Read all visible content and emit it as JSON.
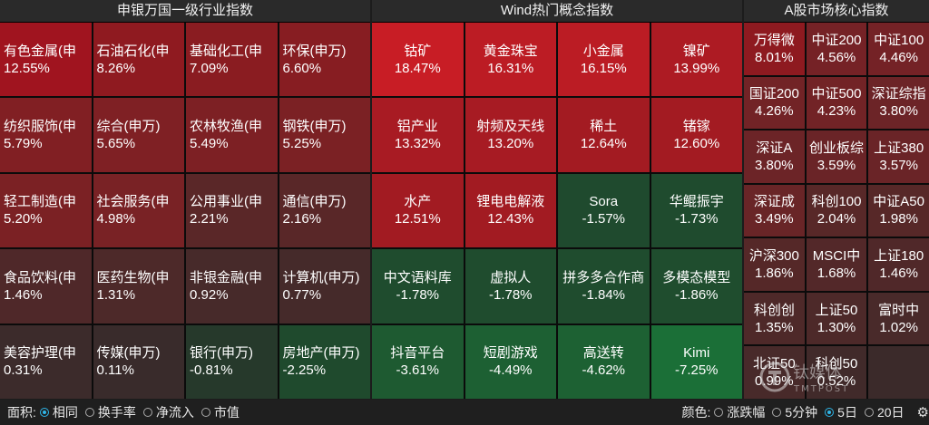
{
  "panels": [
    {
      "title": "申银万国一级行业指数",
      "tiles": [
        {
          "name": "有色金属(申",
          "pct": "12.55%",
          "color": "#a0141f"
        },
        {
          "name": "石油石化(申",
          "pct": "8.26%",
          "color": "#8f1a20"
        },
        {
          "name": "基础化工(申",
          "pct": "7.09%",
          "color": "#8a1c21"
        },
        {
          "name": "环保(申万)",
          "pct": "6.60%",
          "color": "#871d22"
        },
        {
          "name": "纺织服饰(申",
          "pct": "5.79%",
          "color": "#811f23"
        },
        {
          "name": "综合(申万)",
          "pct": "5.65%",
          "color": "#7f2024"
        },
        {
          "name": "农林牧渔(申",
          "pct": "5.49%",
          "color": "#7d2024"
        },
        {
          "name": "钢铁(申万)",
          "pct": "5.25%",
          "color": "#7b2124"
        },
        {
          "name": "轻工制造(申",
          "pct": "5.20%",
          "color": "#7b2124"
        },
        {
          "name": "社会服务(申",
          "pct": "4.98%",
          "color": "#792225"
        },
        {
          "name": "公用事业(申",
          "pct": "2.21%",
          "color": "#5a2728"
        },
        {
          "name": "通信(申万)",
          "pct": "2.16%",
          "color": "#592728"
        },
        {
          "name": "食品饮料(申",
          "pct": "1.46%",
          "color": "#4f2829"
        },
        {
          "name": "医药生物(申",
          "pct": "1.31%",
          "color": "#4d2929"
        },
        {
          "name": "非银金融(申",
          "pct": "0.92%",
          "color": "#472a2a"
        },
        {
          "name": "计算机(申万)",
          "pct": "0.77%",
          "color": "#452a2a"
        },
        {
          "name": "美容护理(申",
          "pct": "0.31%",
          "color": "#3c2b2b"
        },
        {
          "name": "传媒(申万)",
          "pct": "0.11%",
          "color": "#392b2b"
        },
        {
          "name": "银行(申万)",
          "pct": "-0.81%",
          "color": "#26392b"
        },
        {
          "name": "房地产(申万)",
          "pct": "-2.25%",
          "color": "#1f4a2d"
        }
      ]
    },
    {
      "title": "Wind热门概念指数",
      "tiles": [
        {
          "name": "钴矿",
          "pct": "18.47%",
          "color": "#c81d25"
        },
        {
          "name": "黄金珠宝",
          "pct": "16.31%",
          "color": "#bc1c24"
        },
        {
          "name": "小金属",
          "pct": "16.15%",
          "color": "#bb1c24"
        },
        {
          "name": "镍矿",
          "pct": "13.99%",
          "color": "#ad1b23"
        },
        {
          "name": "铝产业",
          "pct": "13.32%",
          "color": "#a81b23"
        },
        {
          "name": "射频及天线",
          "pct": "13.20%",
          "color": "#a71b23"
        },
        {
          "name": "稀土",
          "pct": "12.64%",
          "color": "#a31b22"
        },
        {
          "name": "锗镓",
          "pct": "12.60%",
          "color": "#a31b22"
        },
        {
          "name": "水产",
          "pct": "12.51%",
          "color": "#a21b22"
        },
        {
          "name": "锂电电解液",
          "pct": "12.43%",
          "color": "#a21b22"
        },
        {
          "name": "Sora",
          "pct": "-1.57%",
          "color": "#1f4a2e"
        },
        {
          "name": "华鲲振宇",
          "pct": "-1.73%",
          "color": "#1f4b2e"
        },
        {
          "name": "中文语料库",
          "pct": "-1.78%",
          "color": "#1f4c2e"
        },
        {
          "name": "虚拟人",
          "pct": "-1.78%",
          "color": "#1f4c2e"
        },
        {
          "name": "拼多多合作商",
          "pct": "-1.84%",
          "color": "#1f4c2e"
        },
        {
          "name": "多模态模型",
          "pct": "-1.86%",
          "color": "#1f4d2e"
        },
        {
          "name": "抖音平台",
          "pct": "-3.61%",
          "color": "#1e5a31"
        },
        {
          "name": "短剧游戏",
          "pct": "-4.49%",
          "color": "#1d6033"
        },
        {
          "name": "高送转",
          "pct": "-4.62%",
          "color": "#1d6133"
        },
        {
          "name": "Kimi",
          "pct": "-7.25%",
          "color": "#1b6f37"
        }
      ]
    },
    {
      "title": "A股市场核心指数",
      "tiles": [
        {
          "name": "万得微",
          "pct": "8.01%",
          "color": "#8e1a20"
        },
        {
          "name": "中证200",
          "pct": "4.56%",
          "color": "#752226"
        },
        {
          "name": "中证100",
          "pct": "4.46%",
          "color": "#742226"
        },
        {
          "name": "国证200",
          "pct": "4.26%",
          "color": "#722326"
        },
        {
          "name": "中证500",
          "pct": "4.23%",
          "color": "#722326"
        },
        {
          "name": "深证综指",
          "pct": "3.80%",
          "color": "#6c2427"
        },
        {
          "name": "深证A",
          "pct": "3.80%",
          "color": "#6c2427"
        },
        {
          "name": "创业板综",
          "pct": "3.59%",
          "color": "#6a2427"
        },
        {
          "name": "上证380",
          "pct": "3.57%",
          "color": "#6a2427"
        },
        {
          "name": "深证成",
          "pct": "3.49%",
          "color": "#692527"
        },
        {
          "name": "科创100",
          "pct": "2.04%",
          "color": "#582828"
        },
        {
          "name": "中证A50",
          "pct": "1.98%",
          "color": "#572828"
        },
        {
          "name": "沪深300",
          "pct": "1.86%",
          "color": "#552828"
        },
        {
          "name": "MSCI中",
          "pct": "1.68%",
          "color": "#532829"
        },
        {
          "name": "上证180",
          "pct": "1.46%",
          "color": "#502829"
        },
        {
          "name": "科创创",
          "pct": "1.35%",
          "color": "#4e2929"
        },
        {
          "name": "上证50",
          "pct": "1.30%",
          "color": "#4d2929"
        },
        {
          "name": "富时中",
          "pct": "1.02%",
          "color": "#492a2a"
        },
        {
          "name": "北证50",
          "pct": "0.99%",
          "color": "#482a2a"
        },
        {
          "name": "科创50",
          "pct": "0.52%",
          "color": "#412a2a"
        }
      ]
    }
  ],
  "bottom_bar": {
    "area_label": "面积:",
    "area_options": [
      "相同",
      "换手率",
      "净流入",
      "市值"
    ],
    "area_selected": 0,
    "color_label": "颜色:",
    "color_options": [
      "涨跌幅",
      "5分钟",
      "5日",
      "20日"
    ],
    "color_selected": 2,
    "settings_icon": "gear-icon"
  },
  "watermark": {
    "cn": "钛媒体",
    "en": "TMTPOST",
    "icon": "tmtpost-logo"
  }
}
